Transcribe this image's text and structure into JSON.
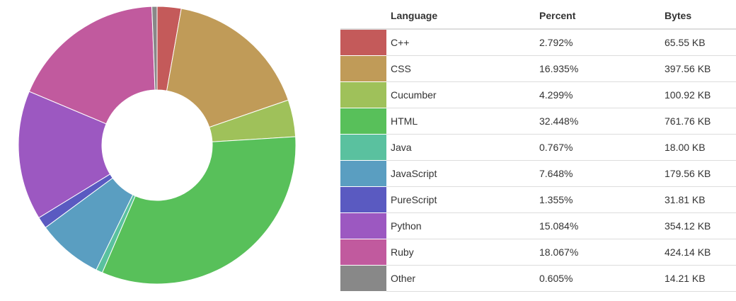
{
  "chart_data": {
    "type": "pie",
    "donut": true,
    "columns": {
      "swatch": "",
      "language": "Language",
      "percent": "Percent",
      "bytes": "Bytes"
    },
    "slices": [
      {
        "name": "C++",
        "percent": 2.792,
        "percent_label": "2.792%",
        "bytes": "65.55 KB",
        "color": "#c45a5a"
      },
      {
        "name": "CSS",
        "percent": 16.935,
        "percent_label": "16.935%",
        "bytes": "397.56 KB",
        "color": "#c09b58"
      },
      {
        "name": "Cucumber",
        "percent": 4.299,
        "percent_label": "4.299%",
        "bytes": "100.92 KB",
        "color": "#9fc15a"
      },
      {
        "name": "HTML",
        "percent": 32.448,
        "percent_label": "32.448%",
        "bytes": "761.76 KB",
        "color": "#58c05a"
      },
      {
        "name": "Java",
        "percent": 0.767,
        "percent_label": "0.767%",
        "bytes": "18.00 KB",
        "color": "#5ac19f"
      },
      {
        "name": "JavaScript",
        "percent": 7.648,
        "percent_label": "7.648%",
        "bytes": "179.56 KB",
        "color": "#5a9ec1"
      },
      {
        "name": "PureScript",
        "percent": 1.355,
        "percent_label": "1.355%",
        "bytes": "31.81 KB",
        "color": "#5a5ac1"
      },
      {
        "name": "Python",
        "percent": 15.084,
        "percent_label": "15.084%",
        "bytes": "354.12 KB",
        "color": "#9c58c1"
      },
      {
        "name": "Ruby",
        "percent": 18.067,
        "percent_label": "18.067%",
        "bytes": "424.14 KB",
        "color": "#c15a9e"
      },
      {
        "name": "Other",
        "percent": 0.605,
        "percent_label": "0.605%",
        "bytes": "14.21 KB",
        "color": "#888888"
      }
    ]
  }
}
